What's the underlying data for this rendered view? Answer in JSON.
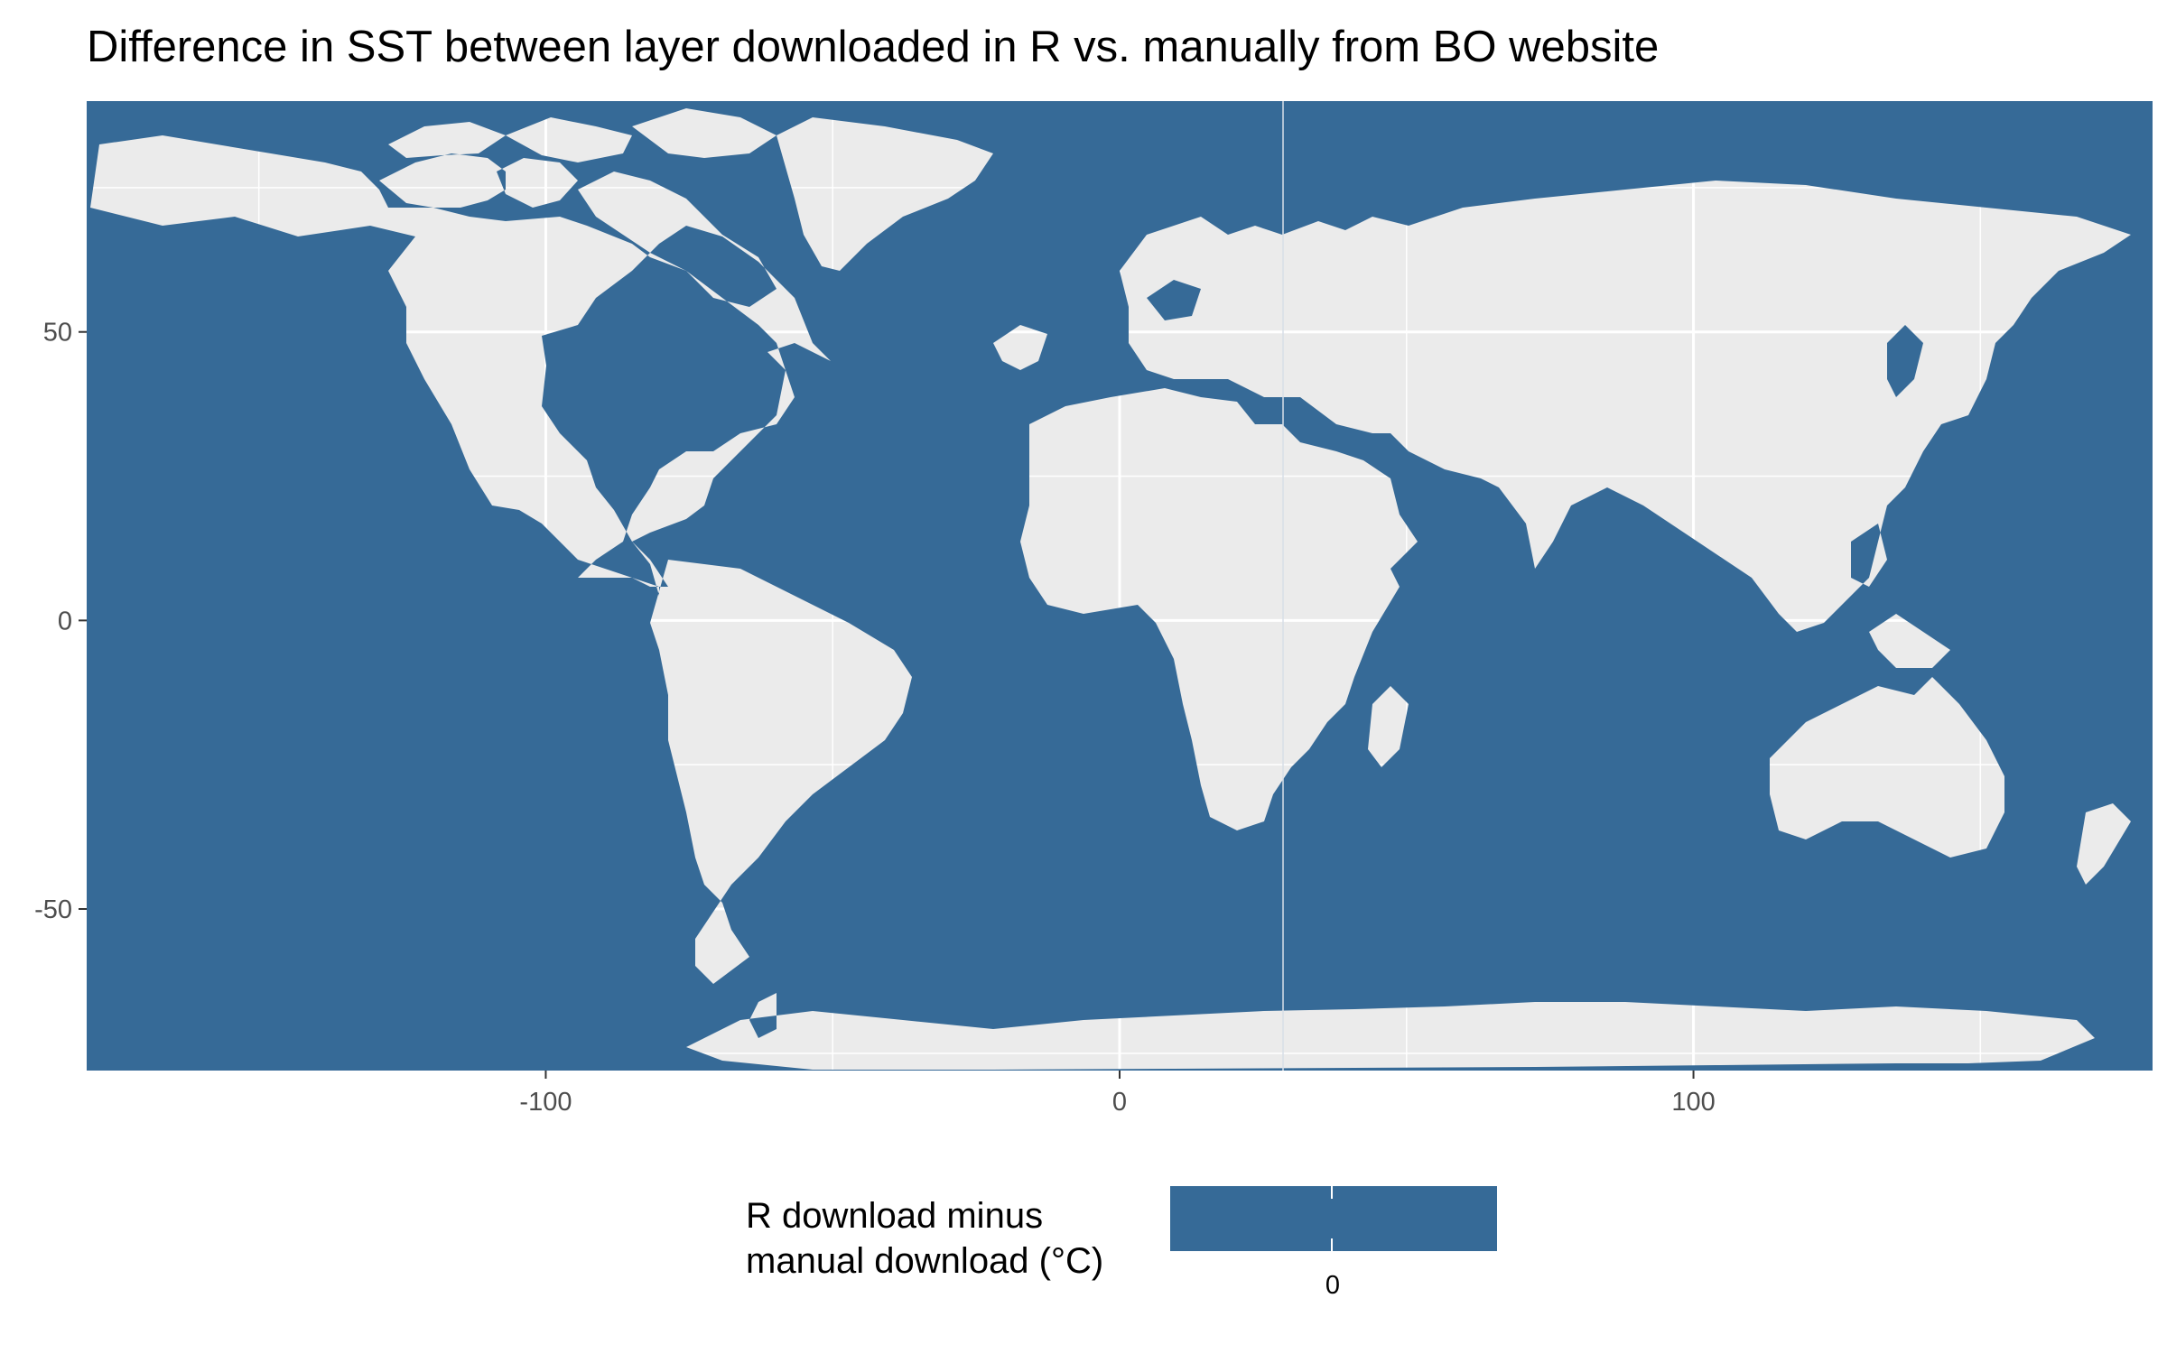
{
  "title": "Difference in SST between layer downloaded in R vs. manually from BO website",
  "colors": {
    "ocean": "#366a97",
    "land": "#ebebeb",
    "grid": "#ffffff",
    "tick_text": "#4d4d4d"
  },
  "map": {
    "type": "raster-map",
    "xlim": [
      -180,
      180
    ],
    "ylim": [
      -78,
      90
    ],
    "x_ticks": [
      -100,
      0,
      100
    ],
    "x_tick_labels": [
      "-100",
      "0",
      "100"
    ],
    "y_ticks": [
      -50,
      0,
      50
    ],
    "y_tick_labels": [
      "-50",
      "0",
      "50"
    ],
    "fill_value": 0
  },
  "legend": {
    "title": "R download minus\nmanual download (°C)",
    "break_value": "0"
  }
}
